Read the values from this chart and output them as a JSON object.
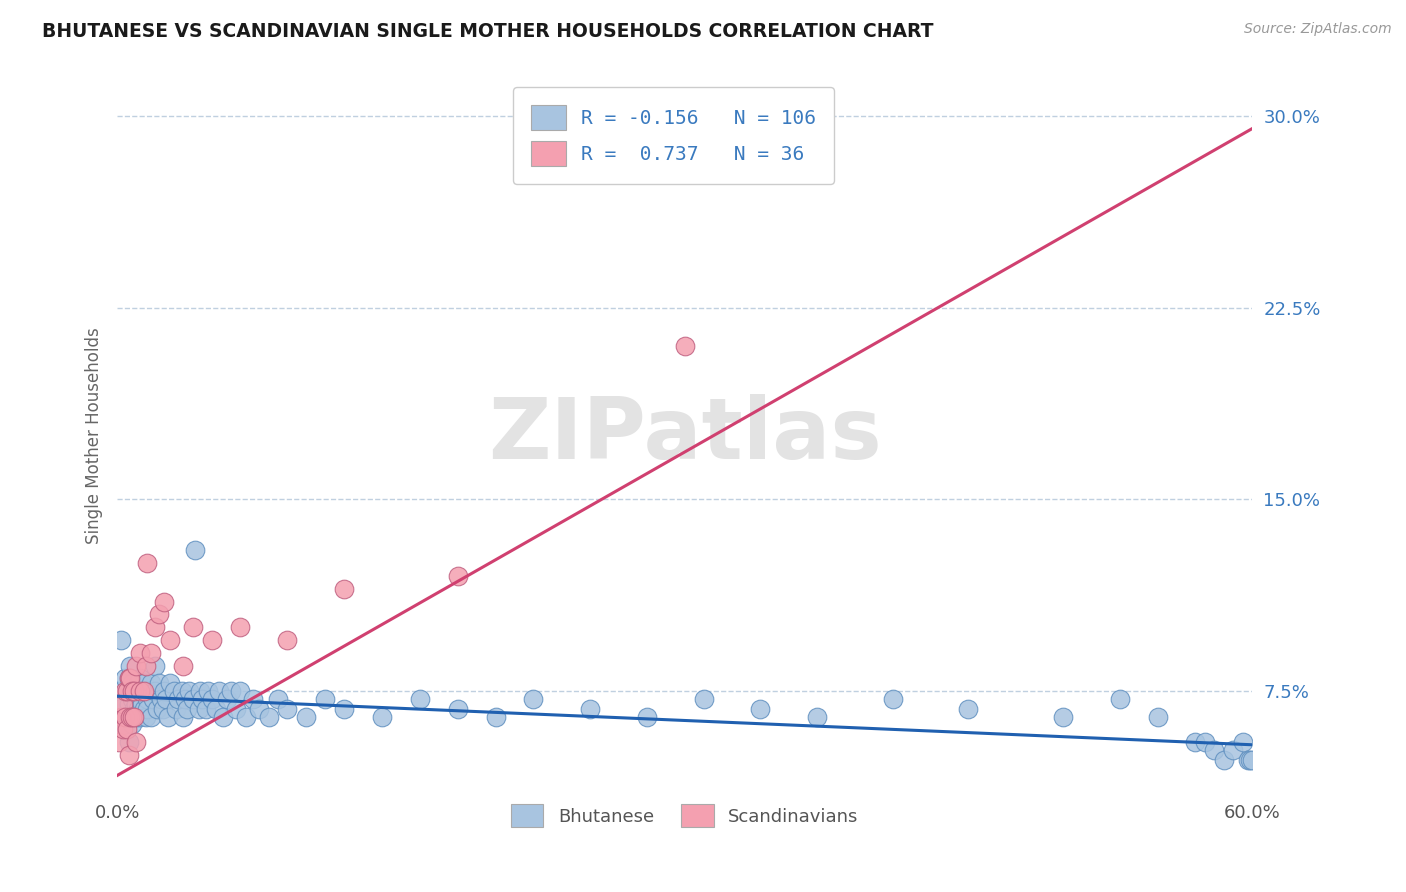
{
  "title": "BHUTANESE VS SCANDINAVIAN SINGLE MOTHER HOUSEHOLDS CORRELATION CHART",
  "source": "Source: ZipAtlas.com",
  "ylabel": "Single Mother Households",
  "xlim": [
    0.0,
    0.6
  ],
  "ylim": [
    0.035,
    0.315
  ],
  "yticks": [
    0.075,
    0.15,
    0.225,
    0.3
  ],
  "ytick_labels": [
    "7.5%",
    "15.0%",
    "22.5%",
    "30.0%"
  ],
  "bhutanese_R": -0.156,
  "bhutanese_N": 106,
  "scandinavian_R": 0.737,
  "scandinavian_N": 36,
  "bhutanese_color": "#a8c4e0",
  "scandinavian_color": "#f4a0b0",
  "bhutanese_line_color": "#2060b0",
  "scandinavian_line_color": "#d04070",
  "legend_color": "#3a7abf",
  "watermark": "ZIPatlas",
  "background_color": "#ffffff",
  "grid_color": "#c0d0e0",
  "blue_line_y0": 0.073,
  "blue_line_y1": 0.054,
  "pink_line_y0": 0.042,
  "pink_line_y1": 0.295,
  "bhutanese_x": [
    0.001,
    0.002,
    0.003,
    0.003,
    0.004,
    0.004,
    0.005,
    0.005,
    0.006,
    0.006,
    0.006,
    0.007,
    0.007,
    0.007,
    0.008,
    0.008,
    0.008,
    0.009,
    0.009,
    0.009,
    0.01,
    0.01,
    0.01,
    0.011,
    0.011,
    0.012,
    0.012,
    0.012,
    0.013,
    0.013,
    0.014,
    0.014,
    0.015,
    0.015,
    0.016,
    0.016,
    0.017,
    0.018,
    0.018,
    0.019,
    0.02,
    0.02,
    0.021,
    0.022,
    0.023,
    0.024,
    0.025,
    0.026,
    0.027,
    0.028,
    0.03,
    0.031,
    0.032,
    0.034,
    0.035,
    0.036,
    0.037,
    0.038,
    0.04,
    0.041,
    0.043,
    0.044,
    0.045,
    0.047,
    0.048,
    0.05,
    0.052,
    0.054,
    0.056,
    0.058,
    0.06,
    0.063,
    0.065,
    0.068,
    0.072,
    0.075,
    0.08,
    0.085,
    0.09,
    0.1,
    0.11,
    0.12,
    0.14,
    0.16,
    0.18,
    0.2,
    0.22,
    0.25,
    0.28,
    0.31,
    0.34,
    0.37,
    0.41,
    0.45,
    0.5,
    0.53,
    0.55,
    0.57,
    0.575,
    0.58,
    0.585,
    0.59,
    0.595,
    0.598,
    0.599,
    0.6
  ],
  "bhutanese_y": [
    0.075,
    0.095,
    0.065,
    0.07,
    0.06,
    0.08,
    0.065,
    0.075,
    0.055,
    0.07,
    0.08,
    0.065,
    0.075,
    0.085,
    0.062,
    0.072,
    0.078,
    0.065,
    0.075,
    0.068,
    0.07,
    0.075,
    0.065,
    0.078,
    0.068,
    0.072,
    0.065,
    0.08,
    0.075,
    0.07,
    0.068,
    0.078,
    0.065,
    0.075,
    0.072,
    0.068,
    0.075,
    0.065,
    0.078,
    0.072,
    0.085,
    0.075,
    0.068,
    0.078,
    0.072,
    0.068,
    0.075,
    0.072,
    0.065,
    0.078,
    0.075,
    0.068,
    0.072,
    0.075,
    0.065,
    0.072,
    0.068,
    0.075,
    0.072,
    0.13,
    0.068,
    0.075,
    0.072,
    0.068,
    0.075,
    0.072,
    0.068,
    0.075,
    0.065,
    0.072,
    0.075,
    0.068,
    0.075,
    0.065,
    0.072,
    0.068,
    0.065,
    0.072,
    0.068,
    0.065,
    0.072,
    0.068,
    0.065,
    0.072,
    0.068,
    0.065,
    0.072,
    0.068,
    0.065,
    0.072,
    0.068,
    0.065,
    0.072,
    0.068,
    0.065,
    0.072,
    0.065,
    0.055,
    0.055,
    0.052,
    0.048,
    0.052,
    0.055,
    0.048,
    0.048,
    0.048
  ],
  "scandinavian_x": [
    0.001,
    0.002,
    0.003,
    0.003,
    0.004,
    0.004,
    0.005,
    0.005,
    0.006,
    0.006,
    0.007,
    0.007,
    0.008,
    0.008,
    0.009,
    0.009,
    0.01,
    0.01,
    0.012,
    0.012,
    0.014,
    0.015,
    0.016,
    0.018,
    0.02,
    0.022,
    0.025,
    0.028,
    0.035,
    0.04,
    0.05,
    0.065,
    0.09,
    0.12,
    0.18,
    0.3
  ],
  "scandinavian_y": [
    0.055,
    0.065,
    0.06,
    0.07,
    0.065,
    0.075,
    0.06,
    0.075,
    0.05,
    0.08,
    0.065,
    0.08,
    0.065,
    0.075,
    0.065,
    0.075,
    0.055,
    0.085,
    0.075,
    0.09,
    0.075,
    0.085,
    0.125,
    0.09,
    0.1,
    0.105,
    0.11,
    0.095,
    0.085,
    0.1,
    0.095,
    0.1,
    0.095,
    0.115,
    0.12,
    0.21
  ]
}
